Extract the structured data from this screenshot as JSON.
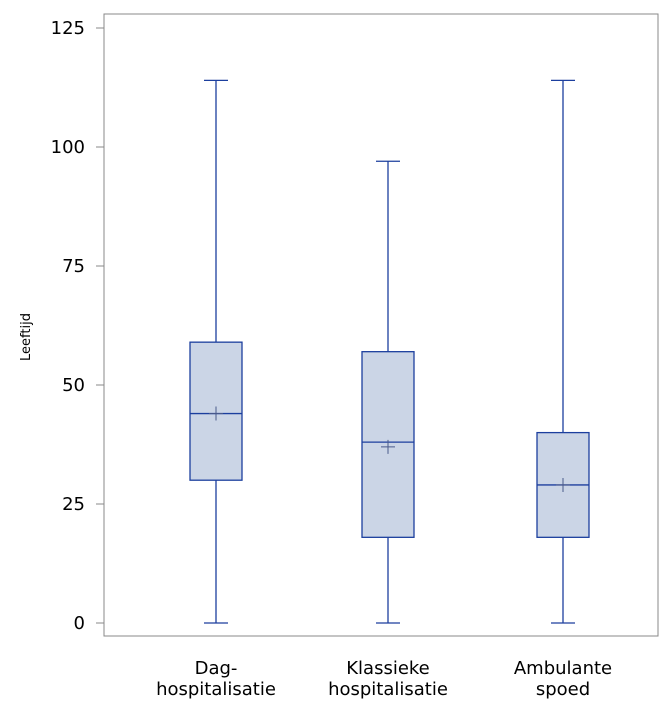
{
  "chart_data": {
    "type": "boxplot",
    "ylabel": "Leeftijd",
    "ylim": [
      0,
      125
    ],
    "yticks": [
      0,
      25,
      50,
      75,
      100,
      125
    ],
    "categories": [
      [
        "Dag-",
        "hospitalisatie"
      ],
      [
        "Klassieke",
        "hospitalisatie"
      ],
      [
        "Ambulante",
        "spoed"
      ]
    ],
    "boxes": [
      {
        "min": 0,
        "q1": 30,
        "median": 44,
        "mean": 44,
        "q3": 59,
        "max": 114
      },
      {
        "min": 0,
        "q1": 18,
        "median": 38,
        "mean": 37,
        "q3": 57,
        "max": 97
      },
      {
        "min": 0,
        "q1": 18,
        "median": 29,
        "mean": 29,
        "q3": 40,
        "max": 114
      }
    ],
    "colors": {
      "stroke": "#1c3f9e",
      "fill": "#cbd5e6",
      "frame": "#888888"
    }
  }
}
